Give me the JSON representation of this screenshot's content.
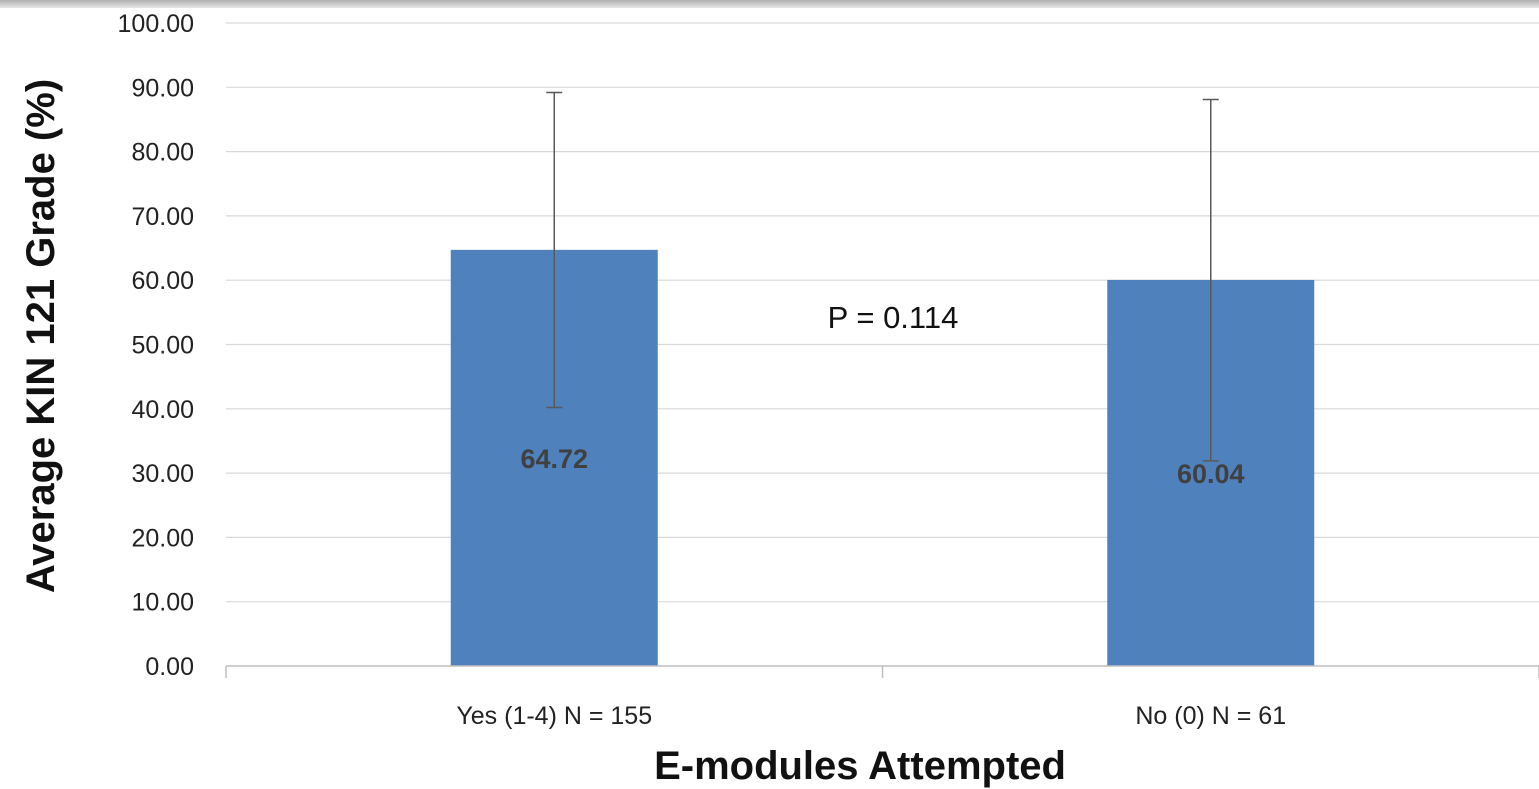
{
  "chart_data": {
    "type": "bar",
    "categories": [
      "Yes (1-4) N = 155",
      "No (0) N = 61"
    ],
    "values": [
      64.72,
      60.04
    ],
    "error_bars": [
      {
        "low": 40.2,
        "high": 89.2
      },
      {
        "low": 31.9,
        "high": 88.1
      }
    ],
    "data_labels": [
      "64.72",
      "60.04"
    ],
    "xlabel": "E-modules Attempted",
    "ylabel": "Average KIN 121 Grade (%)",
    "ylim": [
      0,
      100
    ],
    "yticks": [
      "0.00",
      "10.00",
      "20.00",
      "30.00",
      "40.00",
      "50.00",
      "60.00",
      "70.00",
      "80.00",
      "90.00",
      "100.00"
    ],
    "annotation": "P = 0.114",
    "grid": true,
    "legend": "none",
    "bar_color": "#4f81bd",
    "gridline_color": "#d9d9d9",
    "errorbar_color": "#595959"
  }
}
